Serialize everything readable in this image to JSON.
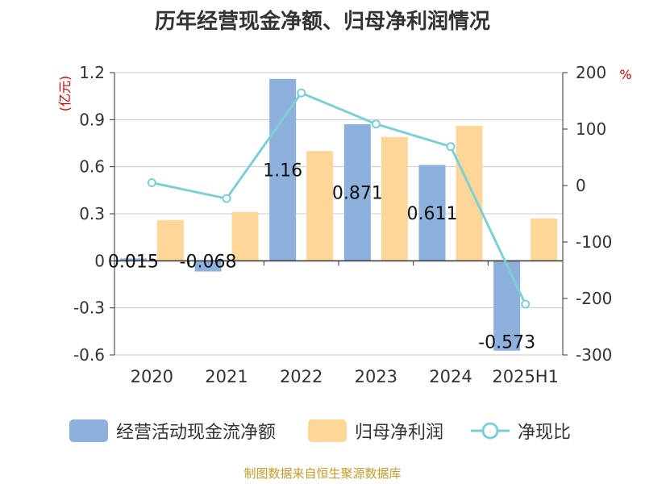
{
  "title": "历年经营现金净额、归母净利润情况",
  "source": "制图数据来自恒生聚源数据库",
  "colors": {
    "cash": "#8eb0dc",
    "profit": "#ffd699",
    "ratio": "#7ecfd4",
    "unit": "#cc0000",
    "axis": "#333333",
    "grid": "#cccccc"
  },
  "chart_data": {
    "type": "bar",
    "title": "历年经营现金净额、归母净利润情况",
    "categories": [
      "2020",
      "2021",
      "2022",
      "2023",
      "2024",
      "2025H1"
    ],
    "y_left_unit": "(亿元)",
    "y_right_unit": "%",
    "y_left_lim": [
      -0.6,
      1.2
    ],
    "y_left_ticks": [
      "1.2",
      "0.9",
      "0.6",
      "0.3",
      "0",
      "-0.3",
      "-0.6"
    ],
    "y_right_lim": [
      -300,
      200
    ],
    "y_right_ticks": [
      "200",
      "100",
      "0",
      "-100",
      "-200",
      "-300"
    ],
    "grid": true,
    "legend_position": "bottom",
    "series": [
      {
        "name": "经营活动现金流净额",
        "kind": "bar",
        "axis": "left",
        "values": [
          0.015,
          -0.068,
          1.16,
          0.871,
          0.611,
          -0.573
        ],
        "labels": [
          "0.015",
          "-0.068",
          "1.16",
          "0.871",
          "0.611",
          "-0.573"
        ]
      },
      {
        "name": "归母净利润",
        "kind": "bar",
        "axis": "left",
        "values": [
          0.26,
          0.31,
          0.7,
          0.79,
          0.86,
          0.27
        ]
      },
      {
        "name": "净现比",
        "kind": "line",
        "axis": "right",
        "values": [
          5,
          -23,
          164,
          109,
          69,
          -210
        ]
      }
    ]
  }
}
